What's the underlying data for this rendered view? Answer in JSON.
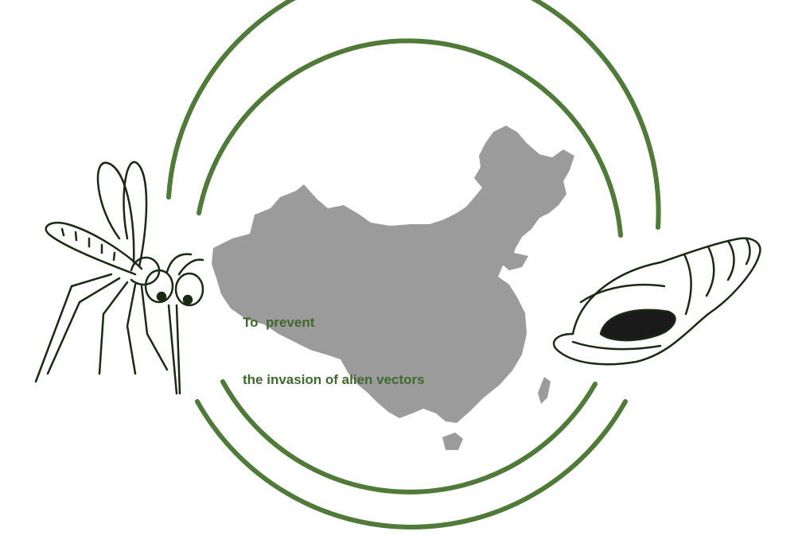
{
  "caption": {
    "line1": "To  prevent",
    "line2": "the invasion of alien vectors"
  },
  "colors": {
    "ring": "#4f7a38",
    "map": "#9b9b9b",
    "text": "#3f6a2e",
    "ink": "#1a2a12"
  },
  "icons": [
    "mosquito-icon",
    "china-map",
    "snail-shell-icon"
  ]
}
